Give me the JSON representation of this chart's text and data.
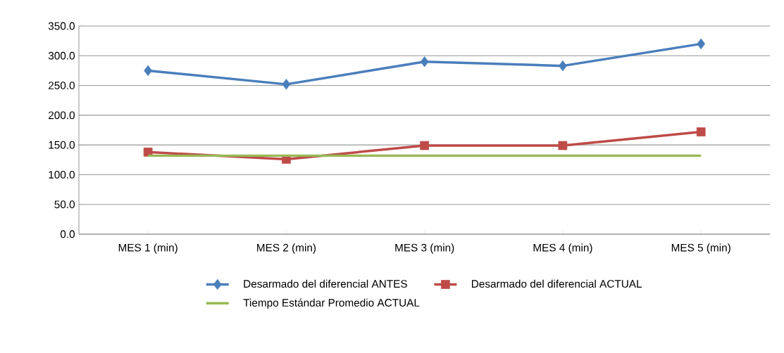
{
  "chart_data": {
    "type": "line",
    "categories": [
      "MES 1 (min)",
      "MES 2 (min)",
      "MES 3 (min)",
      "MES 4 (min)",
      "MES 5 (min)"
    ],
    "series": [
      {
        "name": "Desarmado del diferencial ANTES",
        "color": "#4a7ebb",
        "marker": "diamond",
        "values": [
          275,
          252,
          290,
          283,
          320
        ]
      },
      {
        "name": "Desarmado del diferencial ACTUAL",
        "color": "#be4b48",
        "marker": "square",
        "values": [
          138,
          126,
          149,
          149,
          172
        ]
      },
      {
        "name": "Tiempo Estándar Promedio  ACTUAL",
        "color": "#98b954",
        "marker": "none",
        "values": [
          132,
          132,
          132,
          132,
          132
        ]
      }
    ],
    "ylim": [
      0,
      350
    ],
    "yticks": [
      {
        "value": 0,
        "label": "0.0"
      },
      {
        "value": 50,
        "label": "50.0"
      },
      {
        "value": 100,
        "label": "100.0"
      },
      {
        "value": 150,
        "label": "150.0"
      },
      {
        "value": 200,
        "label": "200.0"
      },
      {
        "value": 250,
        "label": "250.0"
      },
      {
        "value": 300,
        "label": "300.0"
      },
      {
        "value": 350,
        "label": "350.0"
      }
    ],
    "grid": "y",
    "legend": "bottom"
  }
}
